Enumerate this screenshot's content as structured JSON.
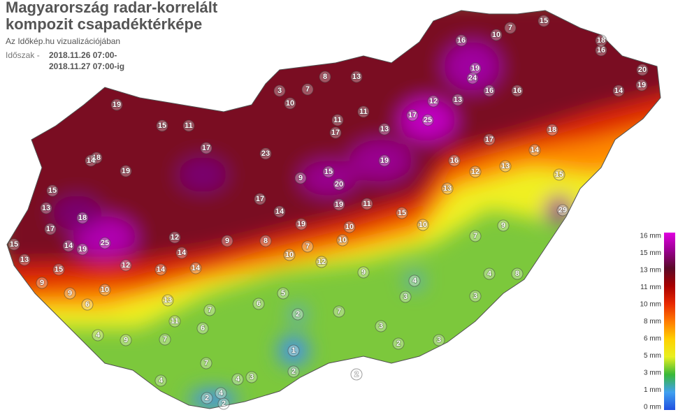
{
  "header": {
    "title_line1": "Magyarország radar-korrelált",
    "title_line2": "kompozit csapadéktérképe",
    "subtitle": "Az Időkép.hu vizualizációjában",
    "period_label": "Időszak -",
    "period_start": "2018.11.26 07:00-",
    "period_end": "2018.11.27 07:00-ig"
  },
  "legend": [
    {
      "label": "16 mm",
      "color": "#e000e0"
    },
    {
      "label": "15 mm",
      "color": "#9a0090"
    },
    {
      "label": "13 mm",
      "color": "#5a0a28"
    },
    {
      "label": "11 mm",
      "color": "#a80000"
    },
    {
      "label": "10 mm",
      "color": "#e82800"
    },
    {
      "label": "8 mm",
      "color": "#ff7a00"
    },
    {
      "label": "6 mm",
      "color": "#ffd000"
    },
    {
      "label": "5 mm",
      "color": "#e8f020"
    },
    {
      "label": "3 mm",
      "color": "#38b838"
    },
    {
      "label": "1 mm",
      "color": "#40a0f0"
    },
    {
      "label": "0 mm",
      "color": "#2050e0"
    }
  ],
  "stations": [
    25,
    25,
    1,
    2,
    2,
    4,
    2,
    4,
    29,
    19,
    24,
    16,
    10,
    7,
    15,
    18,
    16,
    20,
    19,
    14,
    19,
    20,
    15,
    23,
    9,
    17,
    19,
    18,
    17,
    14,
    19,
    18,
    19,
    11,
    15,
    19,
    19,
    11,
    15,
    10,
    12,
    9,
    7,
    9,
    4,
    8,
    3,
    3,
    3,
    2,
    3,
    7,
    5,
    6,
    7,
    6,
    7,
    7,
    4,
    9,
    4,
    6,
    9,
    9,
    15,
    15,
    13,
    13,
    15,
    14,
    9,
    8,
    10,
    7,
    14,
    17,
    10,
    10,
    16,
    13,
    12,
    13,
    14,
    18,
    15,
    17,
    16,
    16,
    12,
    13,
    17,
    11,
    13,
    11,
    17,
    13,
    8,
    7,
    3,
    10,
    12,
    14,
    14,
    14,
    12,
    10,
    13,
    11,
    2,
    3,
    4,
    2
  ]
}
